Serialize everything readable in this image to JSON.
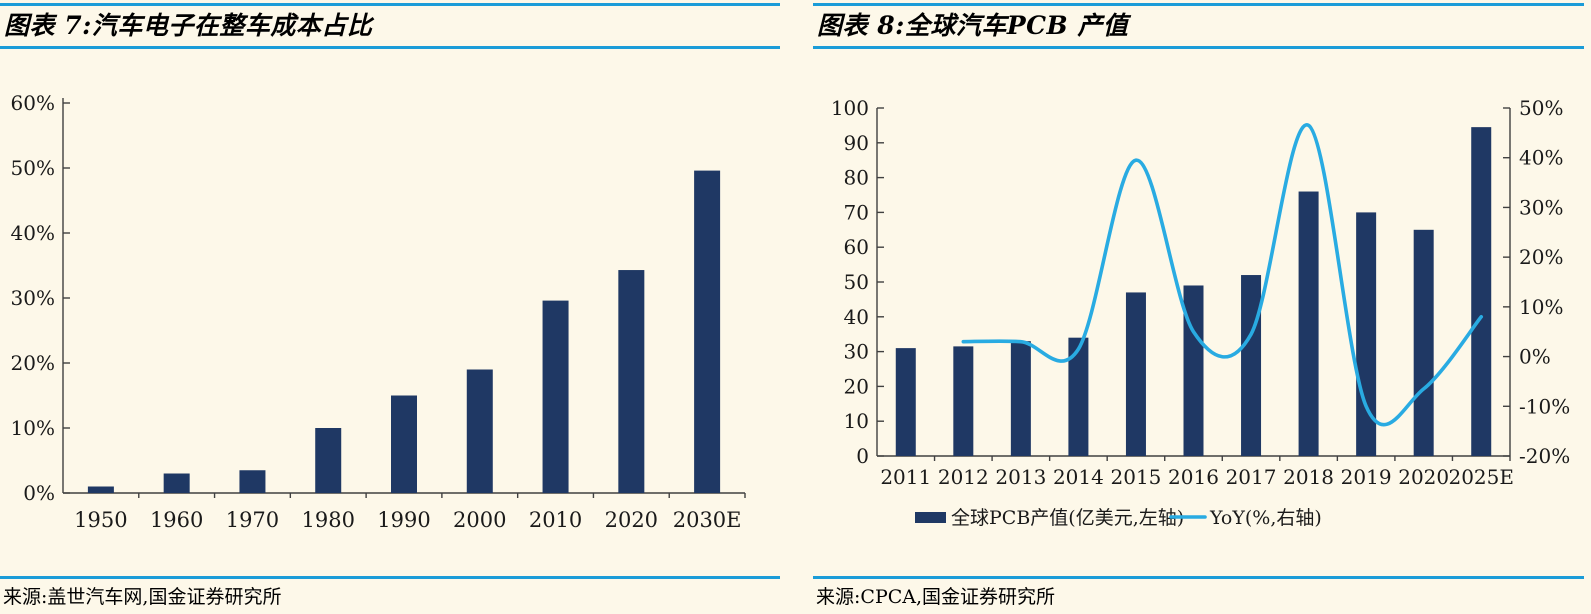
{
  "page": {
    "background_color": "#FDF8E9",
    "rule_color": "#1B9CD8",
    "bar_color": "#1F3864",
    "line_color": "#29ABE2"
  },
  "figure7": {
    "title": "图表 7:汽车电子在整车成本占比",
    "source": "来源:盖世汽车网,国金证券研究所"
  },
  "figure8": {
    "title": "图表 8:全球汽车PCB 产值",
    "source": "来源:CPCA,国金证券研究所"
  },
  "chart_data": [
    {
      "type": "bar",
      "title": "图表 7:汽车电子在整车成本占比",
      "categories": [
        "1950",
        "1960",
        "1970",
        "1980",
        "1990",
        "2000",
        "2010",
        "2020",
        "2030E"
      ],
      "values": [
        1,
        3,
        3.5,
        10,
        15,
        19,
        29.6,
        34.3,
        49.6
      ],
      "unit": "%",
      "xlabel": "",
      "ylabel": "",
      "ylim": [
        0,
        60
      ],
      "ytick_step": 10,
      "ytick_labels": [
        "0%",
        "10%",
        "20%",
        "30%",
        "40%",
        "50%",
        "60%"
      ],
      "grid": false,
      "bar_color": "#1F3864",
      "legend": "none"
    },
    {
      "type": "bar+line",
      "title": "图表 8:全球汽车PCB 产值",
      "categories": [
        "2011",
        "2012",
        "2013",
        "2014",
        "2015",
        "2016",
        "2017",
        "2018",
        "2019",
        "2020",
        "2025E"
      ],
      "series": [
        {
          "name": "全球PCB产值(亿美元,左轴)",
          "type": "bar",
          "axis": "left",
          "color": "#1F3864",
          "values": [
            31,
            31.5,
            33,
            34,
            47,
            49,
            52,
            76,
            70,
            65,
            94.5
          ]
        },
        {
          "name": "YoY(%,右轴)",
          "type": "line",
          "axis": "right",
          "color": "#29ABE2",
          "values": [
            null,
            3,
            3,
            1.5,
            39.5,
            5,
            4.5,
            46.5,
            -10,
            -6.5,
            8
          ]
        }
      ],
      "left_ylim": [
        0,
        100
      ],
      "left_ytick_step": 10,
      "left_ytick_labels": [
        "0",
        "10",
        "20",
        "30",
        "40",
        "50",
        "60",
        "70",
        "80",
        "90",
        "100"
      ],
      "right_ylim": [
        -20,
        50
      ],
      "right_ytick_step": 10,
      "right_ytick_labels": [
        "-20%",
        "-10%",
        "0%",
        "10%",
        "20%",
        "30%",
        "40%",
        "50%"
      ],
      "grid": false,
      "legend_position": "bottom"
    }
  ]
}
